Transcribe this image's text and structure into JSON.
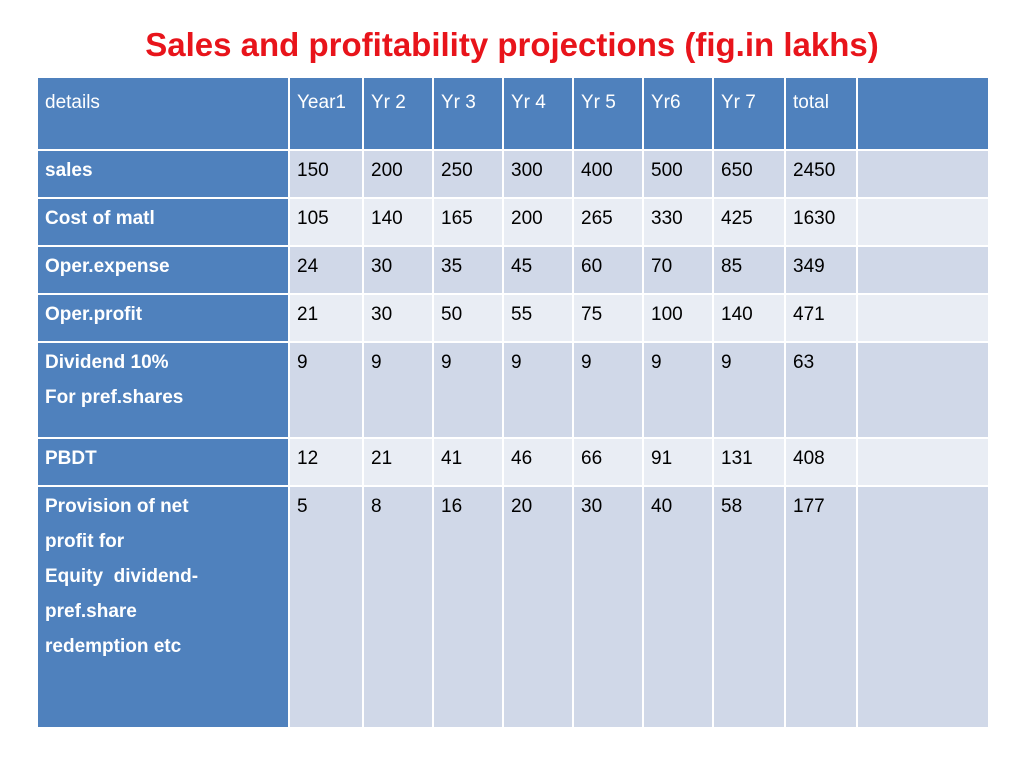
{
  "title": "Sales and profitability projections (fig.in lakhs)",
  "colors": {
    "title": "#e8141b",
    "header_bg": "#4f81bd",
    "band_dark": "#d0d8e8",
    "band_light": "#e9edf4"
  },
  "table": {
    "headers": [
      "details",
      "Year1",
      "Yr 2",
      "Yr 3",
      "Yr 4",
      "Yr 5",
      "Yr6",
      "Yr 7",
      "total",
      ""
    ],
    "rows": [
      {
        "label": [
          "sales"
        ],
        "values": [
          "150",
          "200",
          "250",
          "300",
          "400",
          "500",
          "650",
          "2450",
          ""
        ]
      },
      {
        "label": [
          "Cost of matl"
        ],
        "values": [
          "105",
          "140",
          "165",
          "200",
          "265",
          "330",
          "425",
          "1630",
          ""
        ]
      },
      {
        "label": [
          "Oper.expense"
        ],
        "values": [
          "24",
          "30",
          "35",
          "45",
          "60",
          "70",
          "85",
          "349",
          ""
        ]
      },
      {
        "label": [
          "Oper.profit"
        ],
        "values": [
          "21",
          "30",
          "50",
          "55",
          "75",
          "100",
          "140",
          "471",
          ""
        ]
      },
      {
        "label": [
          "Dividend 10%",
          "For pref.shares"
        ],
        "values": [
          "9",
          "9",
          "9",
          "9",
          "9",
          "9",
          "9",
          "63",
          ""
        ]
      },
      {
        "label": [
          "PBDT"
        ],
        "values": [
          "12",
          "21",
          "41",
          "46",
          "66",
          "91",
          "131",
          "408",
          ""
        ]
      },
      {
        "label": [
          "Provision of net",
          "profit for",
          "Equity  dividend-",
          "pref.share",
          "redemption etc"
        ],
        "values": [
          "5",
          "8",
          "16",
          "20",
          "30",
          "40",
          "58",
          "177",
          ""
        ]
      }
    ]
  }
}
